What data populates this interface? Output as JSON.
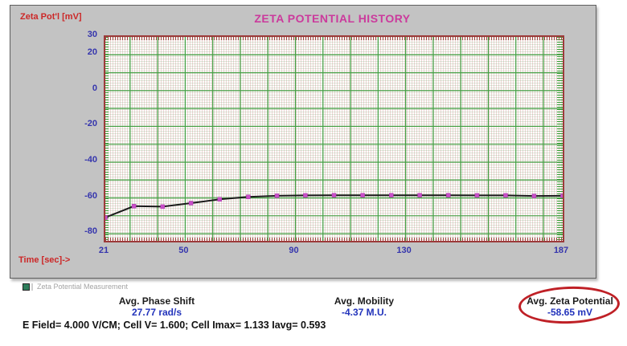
{
  "chart_panel": {
    "y_axis_title": "Zeta Pot'l [mV]",
    "title": "ZETA POTENTIAL HISTORY",
    "x_axis_title": "Time [sec]->",
    "colors": {
      "panel_bg": "#c3c3c3",
      "title": "#cb3a9c",
      "axis_label_red": "#cc2727",
      "tick_label_blue": "#3535ad",
      "plot_border": "#9c3a3a",
      "major_grid_green": "#44a044"
    }
  },
  "chart_data": {
    "type": "line",
    "title": "ZETA POTENTIAL HISTORY",
    "xlabel": "Time [sec]->",
    "ylabel": "Zeta Pot'l [mV]",
    "x": [
      21,
      31.4,
      41.8,
      52.1,
      62.5,
      72.9,
      83.3,
      93.6,
      104,
      114.4,
      124.8,
      135.1,
      145.5,
      155.9,
      166.3,
      176.6,
      187
    ],
    "values": [
      -71.0,
      -64.6,
      -64.9,
      -62.9,
      -60.8,
      -59.4,
      -58.8,
      -58.6,
      -58.5,
      -58.5,
      -58.5,
      -58.5,
      -58.5,
      -58.6,
      -58.6,
      -58.9,
      -58.8
    ],
    "x_ticks": [
      21,
      50,
      90,
      130,
      187
    ],
    "y_ticks": [
      30,
      20,
      0,
      -20,
      -40,
      -60,
      -80
    ],
    "xlim": [
      21,
      187
    ],
    "ylim": [
      -84,
      30
    ],
    "major_grid_step_x_sec": 10,
    "major_grid_step_y_mv": 10,
    "grid": "fine graph-paper minor grid with green major lines",
    "legend": "none",
    "line_color": "#1a1a1a",
    "marker_color": "#c94fc9",
    "marker_shape": "square"
  },
  "measurement_panel": {
    "caption": "Zeta Potential Measurement",
    "stats": [
      {
        "label": "Avg. Phase Shift",
        "value": "27.77 rad/s",
        "circled": false
      },
      {
        "label": "Avg. Mobility",
        "value": "-4.37 M.U.",
        "circled": false
      },
      {
        "label": "Avg. Zeta Potential",
        "value": "-58.65 mV",
        "circled": true
      }
    ],
    "efield_line": "E Field= 4.000 V/CM; Cell V= 1.600; Cell Imax= 1.133 Iavg= 0.593",
    "annotation": {
      "shape": "red-ellipse",
      "color": "#bf2026",
      "around": "Avg. Zeta Potential"
    }
  }
}
